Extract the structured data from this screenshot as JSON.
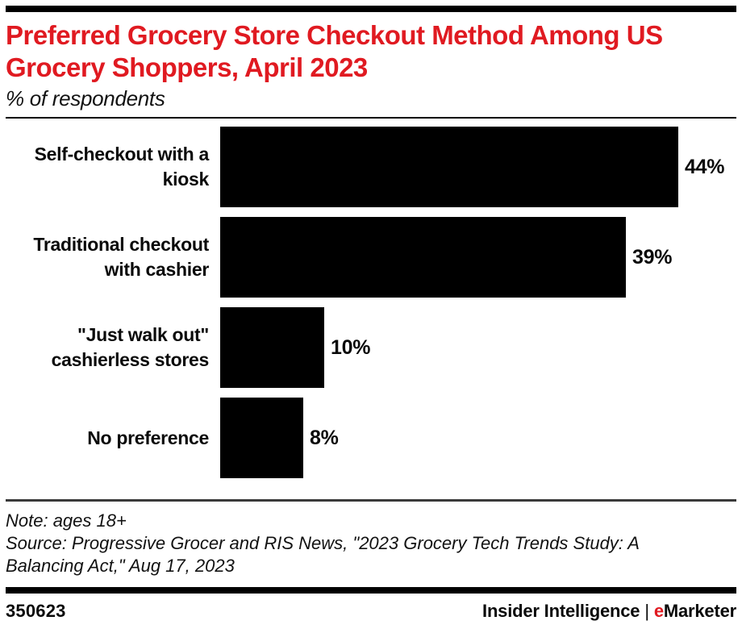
{
  "header": {
    "title": "Preferred Grocery Store Checkout Method Among US Grocery Shoppers, April 2023",
    "subtitle": "% of respondents",
    "accent_color": "#e01a21"
  },
  "chart_data": {
    "type": "bar",
    "orientation": "horizontal",
    "title": "Preferred Grocery Store Checkout Method Among US Grocery Shoppers, April 2023",
    "subtitle": "% of respondents",
    "xlabel": "",
    "ylabel": "",
    "xlim": [
      0,
      50
    ],
    "grid": false,
    "legend": false,
    "bar_color": "#000000",
    "categories": [
      "Self-checkout with a kiosk",
      "Traditional checkout with cashier",
      "\"Just walk out\" cashierless stores",
      "No preference"
    ],
    "values": [
      44,
      39,
      10,
      8
    ],
    "value_labels": [
      "44%",
      "39%",
      "10%",
      "8%"
    ]
  },
  "footnotes": {
    "note": "Note: ages 18+",
    "source": "Source: Progressive Grocer and RIS News, \"2023 Grocery Tech Trends Study: A Balancing Act,\" Aug 17, 2023"
  },
  "footer": {
    "chart_id": "350623",
    "brand_primary": "Insider Intelligence",
    "separator": "|",
    "brand_accent_letter": "e",
    "brand_rest": "Marketer"
  }
}
